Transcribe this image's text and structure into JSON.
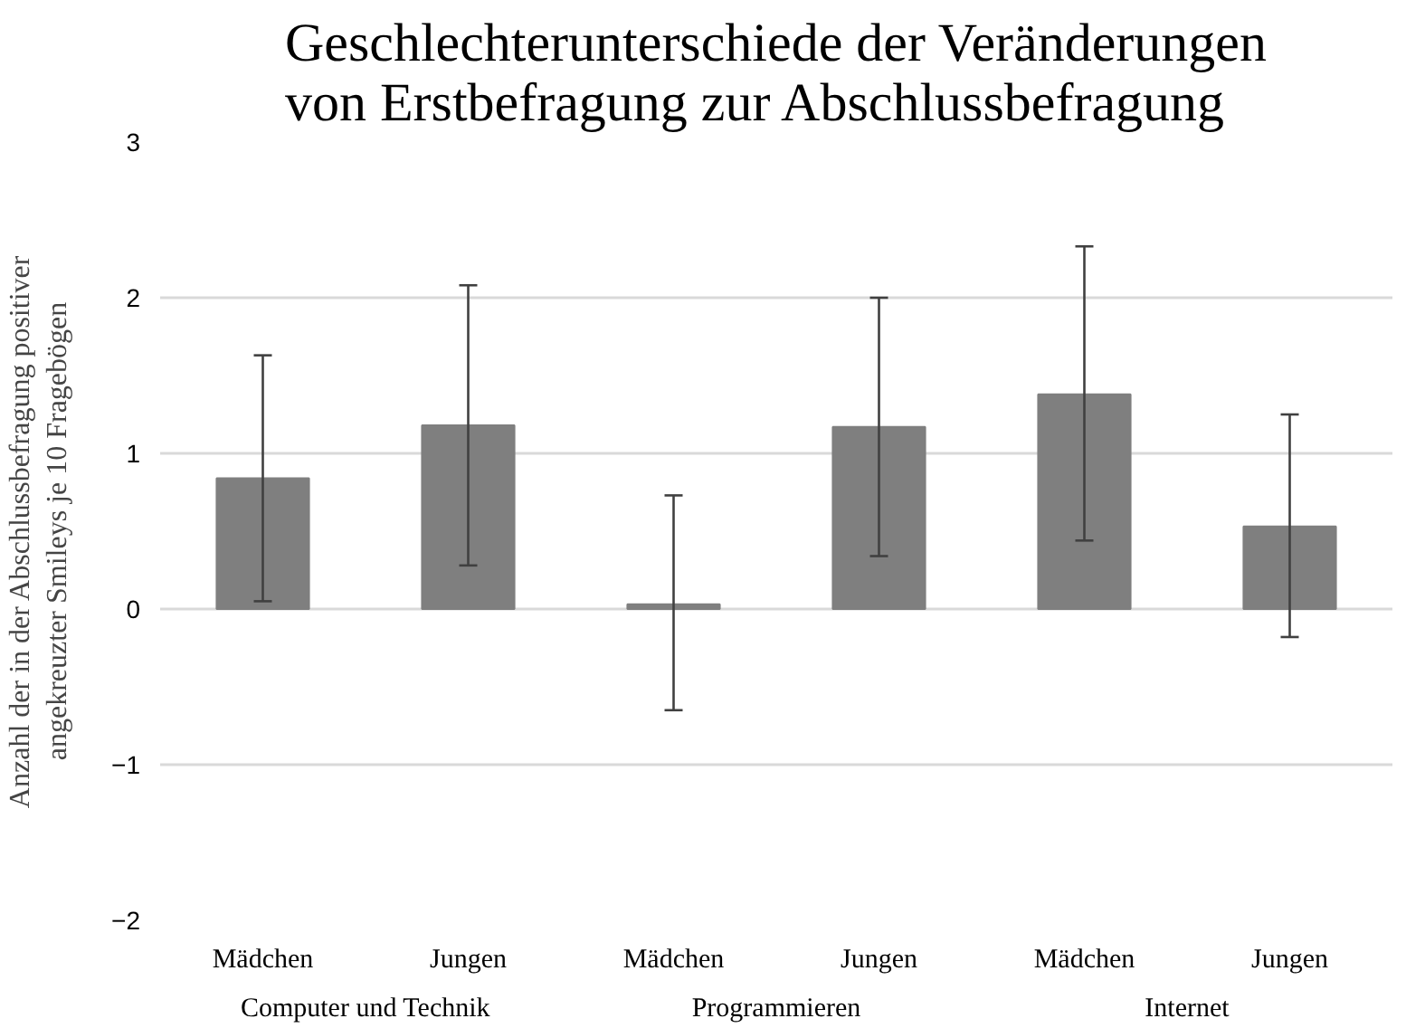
{
  "chart_data": {
    "type": "bar",
    "title": "Geschlechterunterschiede der Veränderungen\nvon Erstbefragung zur Abschlussbefragung",
    "ylabel": "Anzahl der in der Abschlussbefragung positiver\nangekreuzter Smileys je 10 Fragebögen",
    "categories": [
      "Mädchen",
      "Jungen",
      "Mädchen",
      "Jungen",
      "Mädchen",
      "Jungen"
    ],
    "values": [
      0.84,
      1.18,
      0.03,
      1.17,
      1.38,
      0.53
    ],
    "errors": [
      [
        0.05,
        1.63
      ],
      [
        0.28,
        2.08
      ],
      [
        -0.65,
        0.73
      ],
      [
        0.34,
        2.0
      ],
      [
        0.44,
        2.33
      ],
      [
        -0.18,
        1.25
      ]
    ],
    "color": "#7f7f7f",
    "ylim": [
      -2,
      3
    ],
    "yticks": [
      -2,
      -1,
      0,
      1,
      2,
      3
    ],
    "grid": "y",
    "annotations": [
      "Computer und Technik",
      "Programmieren",
      "Internet"
    ]
  }
}
